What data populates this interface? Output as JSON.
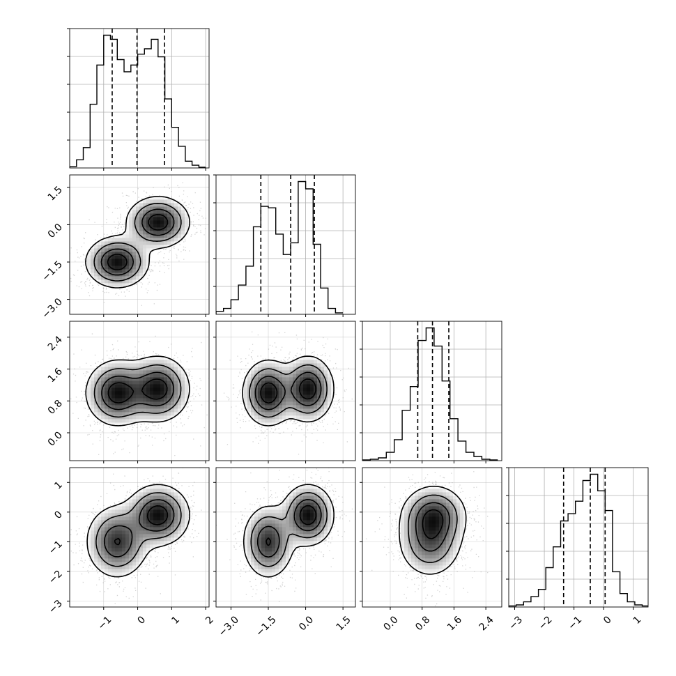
{
  "chart_data": {
    "type": "corner",
    "n_params": 4,
    "show_titles": false,
    "grid": true,
    "style": {
      "frame_color": "#000000",
      "grid_color": "#b0b0b0",
      "hist_color": "#000000",
      "contour_color": "#000000",
      "scatter_color": "#808080",
      "density_colormap": [
        "#ffffff",
        "#d0d0d0",
        "#909090",
        "#505050",
        "#000000"
      ]
    },
    "parameters": [
      {
        "range": [
          -2.0,
          2.1
        ],
        "ticks": [
          -1,
          0,
          1,
          2
        ],
        "tick_labels": [
          "−1",
          "0",
          "1",
          "2"
        ],
        "hist_bins": [
          -2.0,
          -1.8,
          -1.6,
          -1.4,
          -1.2,
          -1.0,
          -0.8,
          -0.6,
          -0.4,
          -0.2,
          0.0,
          0.2,
          0.4,
          0.6,
          0.8,
          1.0,
          1.2,
          1.4,
          1.6,
          1.8,
          2.0
        ],
        "hist_counts": [
          0.01,
          0.06,
          0.15,
          0.47,
          0.76,
          0.98,
          0.95,
          0.8,
          0.71,
          0.76,
          0.84,
          0.88,
          0.95,
          0.82,
          0.51,
          0.3,
          0.16,
          0.05,
          0.02,
          0.005
        ],
        "quantiles": [
          -0.75,
          -0.02,
          0.79
        ]
      },
      {
        "range": [
          -3.6,
          2.0
        ],
        "ticks": [
          -3.0,
          -1.5,
          0.0,
          1.5
        ],
        "tick_labels": [
          "−3.0",
          "−1.5",
          "0.0",
          "1.5"
        ],
        "hist_bins": [
          -3.6,
          -3.3,
          -3.0,
          -2.7,
          -2.4,
          -2.1,
          -1.8,
          -1.5,
          -1.2,
          -0.9,
          -0.6,
          -0.3,
          0.0,
          0.3,
          0.6,
          0.9,
          1.2,
          1.5
        ],
        "hist_counts": [
          0.02,
          0.04,
          0.1,
          0.2,
          0.33,
          0.6,
          0.74,
          0.73,
          0.55,
          0.41,
          0.49,
          0.91,
          0.86,
          0.48,
          0.18,
          0.04,
          0.01
        ],
        "quantiles": [
          -1.8,
          -0.6,
          0.35
        ]
      },
      {
        "range": [
          -0.7,
          2.8
        ],
        "ticks": [
          0.0,
          0.8,
          1.6,
          2.4
        ],
        "tick_labels": [
          "0.0",
          "0.8",
          "1.6",
          "2.4"
        ],
        "hist_bins": [
          -0.7,
          -0.5,
          -0.3,
          -0.1,
          0.1,
          0.3,
          0.5,
          0.7,
          0.9,
          1.1,
          1.3,
          1.5,
          1.7,
          1.9,
          2.1,
          2.3,
          2.5,
          2.7
        ],
        "hist_counts": [
          0.005,
          0.01,
          0.02,
          0.06,
          0.15,
          0.36,
          0.53,
          0.86,
          0.95,
          0.82,
          0.57,
          0.3,
          0.14,
          0.06,
          0.03,
          0.01,
          0.005
        ],
        "quantiles": [
          0.69,
          1.06,
          1.47
        ]
      },
      {
        "range": [
          -3.2,
          1.5
        ],
        "ticks": [
          -3,
          -2,
          -1,
          0,
          1
        ],
        "tick_labels": [
          "−3",
          "−2",
          "−1",
          "0",
          "1"
        ],
        "hist_bins": [
          -3.2,
          -2.95,
          -2.7,
          -2.45,
          -2.2,
          -1.95,
          -1.7,
          -1.45,
          -1.2,
          -0.95,
          -0.7,
          -0.45,
          -0.2,
          0.05,
          0.3,
          0.55,
          0.8,
          1.05,
          1.3,
          1.55
        ],
        "hist_counts": [
          0.01,
          0.02,
          0.05,
          0.1,
          0.17,
          0.38,
          0.58,
          0.83,
          0.9,
          1.02,
          1.22,
          1.28,
          1.12,
          0.93,
          0.34,
          0.13,
          0.05,
          0.02,
          0.01
        ],
        "quantiles": [
          -1.35,
          -0.45,
          0.05
        ]
      }
    ],
    "modes": [
      {
        "weight": 0.5,
        "mean": [
          -0.6,
          -1.5,
          1.0,
          -1.0
        ],
        "sd": [
          0.45,
          0.5,
          0.4,
          0.6
        ]
      },
      {
        "weight": 0.5,
        "mean": [
          0.6,
          0.1,
          1.1,
          -0.1
        ],
        "sd": [
          0.45,
          0.5,
          0.4,
          0.5
        ]
      }
    ]
  }
}
